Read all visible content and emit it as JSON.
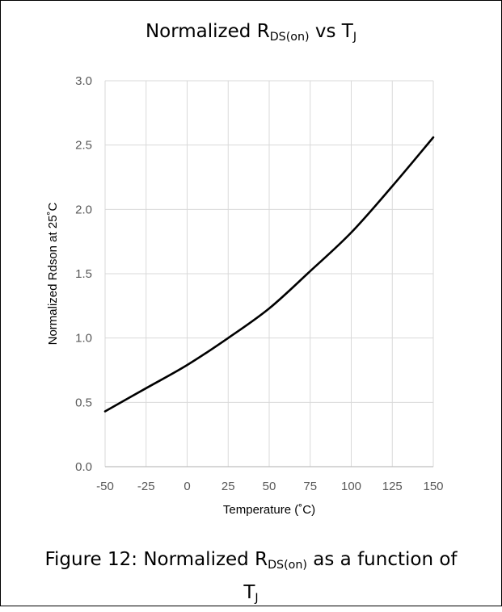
{
  "title": {
    "prefix": "Normalized R",
    "sub": "DS(on)",
    "middle": " vs T",
    "sub2": "J"
  },
  "caption": {
    "line1_prefix": "Figure 12: Normalized R",
    "line1_sub": "DS(on)",
    "line1_suffix": " as a function of",
    "line2_prefix": "T",
    "line2_sub": "J"
  },
  "colors": {
    "line": "#000000",
    "grid": "#d9d9d9",
    "axis": "#bfbfbf",
    "tick_label": "#595959",
    "axis_label": "#000000"
  },
  "chart_data": {
    "type": "line",
    "xlabel": "Temperature (˚C)",
    "ylabel": "Normalized Rdson at 25˚C",
    "xlim": [
      -50,
      150
    ],
    "ylim": [
      0,
      3
    ],
    "x_ticks": [
      -50,
      -25,
      0,
      25,
      50,
      75,
      100,
      125,
      150
    ],
    "x_tick_labels": [
      "-50",
      "-25",
      "0",
      "25",
      "50",
      "75",
      "100",
      "125",
      "150"
    ],
    "y_ticks": [
      0,
      0.5,
      1,
      1.5,
      2,
      2.5,
      3
    ],
    "y_tick_labels": [
      "0.0",
      "0.5",
      "1.0",
      "1.5",
      "2.0",
      "2.5",
      "3.0"
    ],
    "grid": true,
    "legend": "none",
    "series": [
      {
        "x": [
          -50,
          -25,
          0,
          25,
          50,
          75,
          100,
          125,
          150
        ],
        "y": [
          0.43,
          0.61,
          0.79,
          1.0,
          1.23,
          1.52,
          1.82,
          2.18,
          2.56
        ]
      }
    ]
  }
}
